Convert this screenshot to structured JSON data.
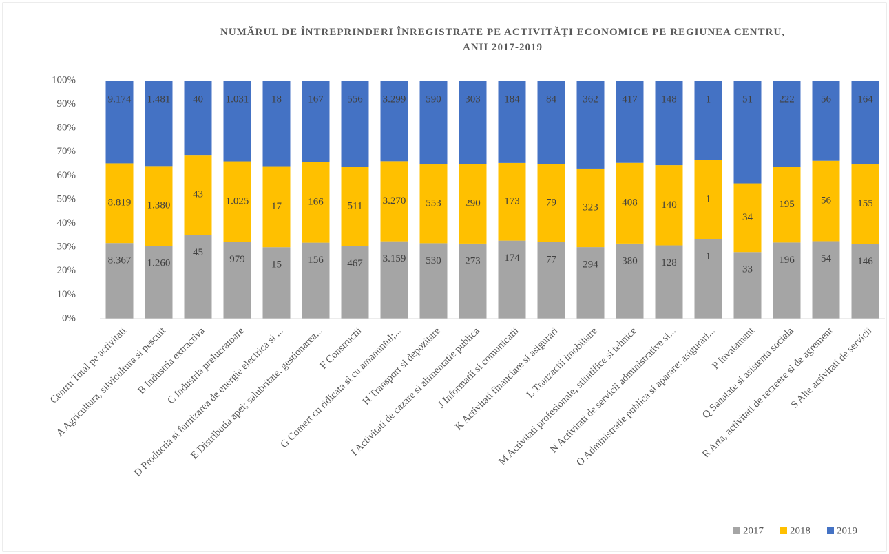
{
  "chart_data": {
    "type": "bar",
    "stacking": "percent",
    "title": "NUMĂRUL DE ÎNTREPRINDERI ÎNREGISTRATE PE ACTIVITĂŢI ECONOMICE PE REGIUNEA CENTRU, ANII 2017-2019",
    "categories": [
      "Centru Total pe activitati",
      "A Agricultura, silvicultura si pescuit",
      "B Industria extractiva",
      "C Industria prelucratoare",
      "D Productia si furnizarea de energie electrica si ...",
      "E Distributia apei; salubritate, gestionarea...",
      "F Constructii",
      "G Comert cu ridicata si cu amanuntul;...",
      "H Transport si depozitare",
      "I Activitati de cazare si alimentatie publica",
      "J Informatii si comunicatii",
      "K Activitati financiare si asigurari",
      "L Tranzactii imobiliare",
      "M Activitati profesionale, stiintifice si tehnice",
      "N Activitati de servicii administrative si...",
      "O Administratie publica si aparare; asigurari...",
      "P Invatamant",
      "Q Sanatate si asistenta sociala",
      "R Arta, activitati de recreere si de agrement",
      "S Alte activitati de servicii"
    ],
    "series": [
      {
        "name": "2017",
        "color": "#a5a5a5",
        "values": [
          8367,
          1260,
          45,
          979,
          15,
          156,
          467,
          3159,
          530,
          273,
          174,
          77,
          294,
          380,
          128,
          1,
          33,
          196,
          54,
          146
        ],
        "value_labels": [
          "8.367",
          "1.260",
          "45",
          "979",
          "15",
          "156",
          "467",
          "3.159",
          "530",
          "273",
          "174",
          "77",
          "294",
          "380",
          "128",
          "1",
          "33",
          "196",
          "54",
          "146"
        ]
      },
      {
        "name": "2018",
        "color": "#ffc000",
        "values": [
          8819,
          1380,
          43,
          1025,
          17,
          166,
          511,
          3270,
          553,
          290,
          173,
          79,
          323,
          408,
          140,
          1,
          34,
          195,
          56,
          155
        ],
        "value_labels": [
          "8.819",
          "1.380",
          "43",
          "1.025",
          "17",
          "166",
          "511",
          "3.270",
          "553",
          "290",
          "173",
          "79",
          "323",
          "408",
          "140",
          "1",
          "34",
          "195",
          "56",
          "155"
        ]
      },
      {
        "name": "2019",
        "color": "#4472c4",
        "values": [
          9174,
          1481,
          40,
          1031,
          18,
          167,
          556,
          3299,
          590,
          303,
          184,
          84,
          362,
          417,
          148,
          1,
          51,
          222,
          56,
          164
        ],
        "value_labels": [
          "9.174",
          "1.481",
          "40",
          "1.031",
          "18",
          "167",
          "556",
          "3.299",
          "590",
          "303",
          "184",
          "84",
          "362",
          "417",
          "148",
          "1",
          "51",
          "222",
          "56",
          "164"
        ]
      }
    ],
    "ylim": [
      0,
      100
    ],
    "yticks": [
      {
        "value": 0,
        "label": "0%"
      },
      {
        "value": 10,
        "label": "10%"
      },
      {
        "value": 20,
        "label": "20%"
      },
      {
        "value": 30,
        "label": "30%"
      },
      {
        "value": 40,
        "label": "40%"
      },
      {
        "value": 50,
        "label": "50%"
      },
      {
        "value": 60,
        "label": "60%"
      },
      {
        "value": 70,
        "label": "70%"
      },
      {
        "value": 80,
        "label": "80%"
      },
      {
        "value": 90,
        "label": "90%"
      },
      {
        "value": 100,
        "label": "100%"
      }
    ],
    "grid": false,
    "legend": "bottom-right"
  }
}
